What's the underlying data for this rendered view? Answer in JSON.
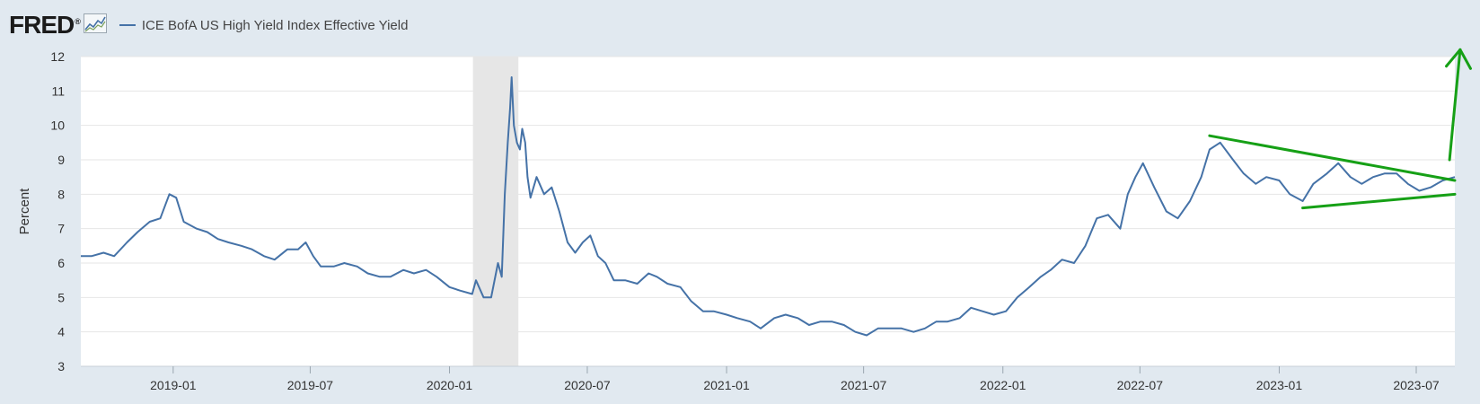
{
  "header": {
    "logo_text": "FRED",
    "logo_mark": "®",
    "logo_icon": "line-graph-icon"
  },
  "colors": {
    "background": "#e1e9f0",
    "plot_background": "#ffffff",
    "series_line": "#4572a7",
    "recession_shading": "#e6e6e6",
    "annotation": "#16a016",
    "gridline": "#e6e6e6"
  },
  "chart_data": {
    "type": "line",
    "title": "",
    "xlabel": "",
    "ylabel": "Percent",
    "ylim": [
      3,
      12
    ],
    "yticks": [
      3,
      4,
      5,
      6,
      7,
      8,
      9,
      10,
      11,
      12
    ],
    "xlim": [
      "2018-09-01",
      "2023-08-21"
    ],
    "xtick_labels": [
      {
        "date": "2019-01-01",
        "label": "2019-01"
      },
      {
        "date": "2019-07-01",
        "label": "2019-07"
      },
      {
        "date": "2020-01-01",
        "label": "2020-01"
      },
      {
        "date": "2020-07-01",
        "label": "2020-07"
      },
      {
        "date": "2021-01-01",
        "label": "2021-01"
      },
      {
        "date": "2021-07-01",
        "label": "2021-07"
      },
      {
        "date": "2022-01-01",
        "label": "2022-01"
      },
      {
        "date": "2022-07-01",
        "label": "2022-07"
      },
      {
        "date": "2023-01-01",
        "label": "2023-01"
      },
      {
        "date": "2023-07-01",
        "label": "2023-07"
      }
    ],
    "grid": true,
    "legend_position": "top-left",
    "recession_periods": [
      [
        "2020-02-01",
        "2020-04-01"
      ]
    ],
    "series": [
      {
        "name": "ICE BofA US High Yield Index Effective Yield",
        "points": [
          [
            "2018-09-01",
            6.2
          ],
          [
            "2018-09-15",
            6.2
          ],
          [
            "2018-10-01",
            6.3
          ],
          [
            "2018-10-15",
            6.2
          ],
          [
            "2018-11-01",
            6.6
          ],
          [
            "2018-11-15",
            6.9
          ],
          [
            "2018-12-01",
            7.2
          ],
          [
            "2018-12-15",
            7.3
          ],
          [
            "2018-12-27",
            8.0
          ],
          [
            "2019-01-05",
            7.9
          ],
          [
            "2019-01-15",
            7.2
          ],
          [
            "2019-02-01",
            7.0
          ],
          [
            "2019-02-15",
            6.9
          ],
          [
            "2019-03-01",
            6.7
          ],
          [
            "2019-03-15",
            6.6
          ],
          [
            "2019-04-01",
            6.5
          ],
          [
            "2019-04-15",
            6.4
          ],
          [
            "2019-05-01",
            6.2
          ],
          [
            "2019-05-15",
            6.1
          ],
          [
            "2019-06-01",
            6.4
          ],
          [
            "2019-06-15",
            6.4
          ],
          [
            "2019-06-25",
            6.6
          ],
          [
            "2019-07-05",
            6.2
          ],
          [
            "2019-07-15",
            5.9
          ],
          [
            "2019-08-01",
            5.9
          ],
          [
            "2019-08-15",
            6.0
          ],
          [
            "2019-09-01",
            5.9
          ],
          [
            "2019-09-15",
            5.7
          ],
          [
            "2019-10-01",
            5.6
          ],
          [
            "2019-10-15",
            5.6
          ],
          [
            "2019-11-01",
            5.8
          ],
          [
            "2019-11-15",
            5.7
          ],
          [
            "2019-12-01",
            5.8
          ],
          [
            "2019-12-15",
            5.6
          ],
          [
            "2020-01-01",
            5.3
          ],
          [
            "2020-01-15",
            5.2
          ],
          [
            "2020-01-31",
            5.1
          ],
          [
            "2020-02-05",
            5.5
          ],
          [
            "2020-02-15",
            5.0
          ],
          [
            "2020-02-25",
            5.0
          ],
          [
            "2020-03-05",
            6.0
          ],
          [
            "2020-03-10",
            5.6
          ],
          [
            "2020-03-14",
            8.0
          ],
          [
            "2020-03-18",
            9.5
          ],
          [
            "2020-03-21",
            10.5
          ],
          [
            "2020-03-23",
            11.4
          ],
          [
            "2020-03-26",
            10.0
          ],
          [
            "2020-03-30",
            9.5
          ],
          [
            "2020-04-03",
            9.3
          ],
          [
            "2020-04-06",
            9.9
          ],
          [
            "2020-04-10",
            9.5
          ],
          [
            "2020-04-13",
            8.5
          ],
          [
            "2020-04-17",
            7.9
          ],
          [
            "2020-04-25",
            8.5
          ],
          [
            "2020-05-05",
            8.0
          ],
          [
            "2020-05-15",
            8.2
          ],
          [
            "2020-05-25",
            7.5
          ],
          [
            "2020-06-05",
            6.6
          ],
          [
            "2020-06-15",
            6.3
          ],
          [
            "2020-06-25",
            6.6
          ],
          [
            "2020-07-05",
            6.8
          ],
          [
            "2020-07-15",
            6.2
          ],
          [
            "2020-07-25",
            6.0
          ],
          [
            "2020-08-05",
            5.5
          ],
          [
            "2020-08-20",
            5.5
          ],
          [
            "2020-09-05",
            5.4
          ],
          [
            "2020-09-20",
            5.7
          ],
          [
            "2020-10-01",
            5.6
          ],
          [
            "2020-10-15",
            5.4
          ],
          [
            "2020-11-01",
            5.3
          ],
          [
            "2020-11-15",
            4.9
          ],
          [
            "2020-12-01",
            4.6
          ],
          [
            "2020-12-15",
            4.6
          ],
          [
            "2021-01-01",
            4.5
          ],
          [
            "2021-01-15",
            4.4
          ],
          [
            "2021-02-01",
            4.3
          ],
          [
            "2021-02-15",
            4.1
          ],
          [
            "2021-03-05",
            4.4
          ],
          [
            "2021-03-20",
            4.5
          ],
          [
            "2021-04-05",
            4.4
          ],
          [
            "2021-04-20",
            4.2
          ],
          [
            "2021-05-05",
            4.3
          ],
          [
            "2021-05-20",
            4.3
          ],
          [
            "2021-06-05",
            4.2
          ],
          [
            "2021-06-20",
            4.0
          ],
          [
            "2021-07-05",
            3.9
          ],
          [
            "2021-07-20",
            4.1
          ],
          [
            "2021-08-05",
            4.1
          ],
          [
            "2021-08-20",
            4.1
          ],
          [
            "2021-09-05",
            4.0
          ],
          [
            "2021-09-20",
            4.1
          ],
          [
            "2021-10-05",
            4.3
          ],
          [
            "2021-10-20",
            4.3
          ],
          [
            "2021-11-05",
            4.4
          ],
          [
            "2021-11-20",
            4.7
          ],
          [
            "2021-12-05",
            4.6
          ],
          [
            "2021-12-20",
            4.5
          ],
          [
            "2022-01-05",
            4.6
          ],
          [
            "2022-01-20",
            5.0
          ],
          [
            "2022-02-05",
            5.3
          ],
          [
            "2022-02-20",
            5.6
          ],
          [
            "2022-03-05",
            5.8
          ],
          [
            "2022-03-20",
            6.1
          ],
          [
            "2022-04-05",
            6.0
          ],
          [
            "2022-04-20",
            6.5
          ],
          [
            "2022-05-05",
            7.3
          ],
          [
            "2022-05-20",
            7.4
          ],
          [
            "2022-06-05",
            7.0
          ],
          [
            "2022-06-15",
            8.0
          ],
          [
            "2022-06-25",
            8.5
          ],
          [
            "2022-07-05",
            8.9
          ],
          [
            "2022-07-20",
            8.2
          ],
          [
            "2022-08-05",
            7.5
          ],
          [
            "2022-08-20",
            7.3
          ],
          [
            "2022-09-05",
            7.8
          ],
          [
            "2022-09-20",
            8.5
          ],
          [
            "2022-10-01",
            9.3
          ],
          [
            "2022-10-15",
            9.5
          ],
          [
            "2022-11-01",
            9.0
          ],
          [
            "2022-11-15",
            8.6
          ],
          [
            "2022-12-01",
            8.3
          ],
          [
            "2022-12-15",
            8.5
          ],
          [
            "2023-01-01",
            8.4
          ],
          [
            "2023-01-15",
            8.0
          ],
          [
            "2023-02-01",
            7.8
          ],
          [
            "2023-02-15",
            8.3
          ],
          [
            "2023-03-05",
            8.6
          ],
          [
            "2023-03-20",
            8.9
          ],
          [
            "2023-04-05",
            8.5
          ],
          [
            "2023-04-20",
            8.3
          ],
          [
            "2023-05-05",
            8.5
          ],
          [
            "2023-05-20",
            8.6
          ],
          [
            "2023-06-05",
            8.6
          ],
          [
            "2023-06-20",
            8.3
          ],
          [
            "2023-07-05",
            8.1
          ],
          [
            "2023-07-20",
            8.2
          ],
          [
            "2023-08-05",
            8.4
          ],
          [
            "2023-08-21",
            8.5
          ]
        ]
      }
    ],
    "annotations": [
      {
        "type": "trendline",
        "from": [
          "2022-10-01",
          9.7
        ],
        "to": [
          "2023-08-21",
          8.4
        ]
      },
      {
        "type": "trendline",
        "from": [
          "2023-02-01",
          7.6
        ],
        "to": [
          "2023-08-21",
          8.0
        ]
      },
      {
        "type": "arrow",
        "from": [
          "2023-08-14",
          9.0
        ],
        "to": [
          "2023-08-28",
          12.2
        ]
      }
    ]
  }
}
